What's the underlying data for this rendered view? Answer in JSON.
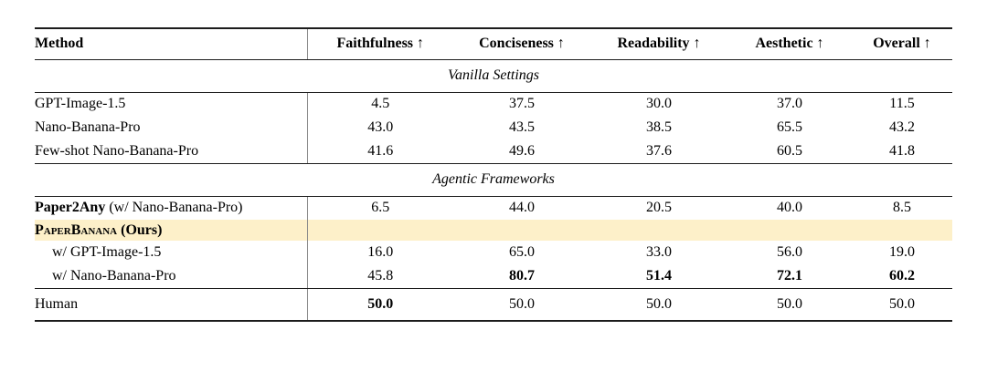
{
  "colors": {
    "page_background": "#ffffff",
    "text": "#000000",
    "rule": "#1c1c1c",
    "column_divider": "#8a8a8a",
    "highlight_row": "#FDF0C9"
  },
  "table": {
    "headers": [
      {
        "label": "Method",
        "arrow": ""
      },
      {
        "label": "Faithfulness",
        "arrow": " ↑"
      },
      {
        "label": "Conciseness",
        "arrow": " ↑"
      },
      {
        "label": "Readability",
        "arrow": " ↑"
      },
      {
        "label": "Aesthetic",
        "arrow": " ↑"
      },
      {
        "label": "Overall",
        "arrow": " ↑"
      }
    ],
    "groups": [
      {
        "section": "Vanilla Settings",
        "rows": [
          {
            "parts": [
              {
                "text": "GPT-Image-1.5"
              }
            ],
            "values": [
              "4.5",
              "37.5",
              "30.0",
              "37.0",
              "11.5"
            ],
            "bold_values": [
              false,
              false,
              false,
              false,
              false
            ]
          },
          {
            "parts": [
              {
                "text": "Nano-Banana-Pro"
              }
            ],
            "values": [
              "43.0",
              "43.5",
              "38.5",
              "65.5",
              "43.2"
            ],
            "bold_values": [
              false,
              false,
              false,
              false,
              false
            ]
          },
          {
            "parts": [
              {
                "text": "Few-shot Nano-Banana-Pro"
              }
            ],
            "values": [
              "41.6",
              "49.6",
              "37.6",
              "60.5",
              "41.8"
            ],
            "bold_values": [
              false,
              false,
              false,
              false,
              false
            ]
          }
        ]
      },
      {
        "section": "Agentic Frameworks",
        "rows": [
          {
            "parts": [
              {
                "text": "Paper2Any",
                "bold": true
              },
              {
                "text": " (w/ Nano-Banana-Pro)"
              }
            ],
            "values": [
              "6.5",
              "44.0",
              "20.5",
              "40.0",
              "8.5"
            ],
            "bold_values": [
              false,
              false,
              false,
              false,
              false
            ]
          },
          {
            "parts": [
              {
                "text": "PaperBanana",
                "bold": true,
                "smallcaps": true
              },
              {
                "text": " (Ours)",
                "bold": true
              }
            ],
            "highlight": true,
            "tight": true,
            "values": [
              "",
              "",
              "",
              "",
              ""
            ],
            "bold_values": [
              false,
              false,
              false,
              false,
              false
            ]
          },
          {
            "parts": [
              {
                "text": "w/ GPT-Image-1.5"
              }
            ],
            "indent": true,
            "values": [
              "16.0",
              "65.0",
              "33.0",
              "56.0",
              "19.0"
            ],
            "bold_values": [
              false,
              false,
              false,
              false,
              false
            ]
          },
          {
            "parts": [
              {
                "text": "w/ Nano-Banana-Pro"
              }
            ],
            "indent": true,
            "values": [
              "45.8",
              "80.7",
              "51.4",
              "72.1",
              "60.2"
            ],
            "bold_values": [
              false,
              true,
              true,
              true,
              true
            ]
          }
        ]
      },
      {
        "section": null,
        "final": true,
        "rows": [
          {
            "parts": [
              {
                "text": "Human"
              }
            ],
            "values": [
              "50.0",
              "50.0",
              "50.0",
              "50.0",
              "50.0"
            ],
            "bold_values": [
              true,
              false,
              false,
              false,
              false
            ]
          }
        ]
      }
    ]
  }
}
